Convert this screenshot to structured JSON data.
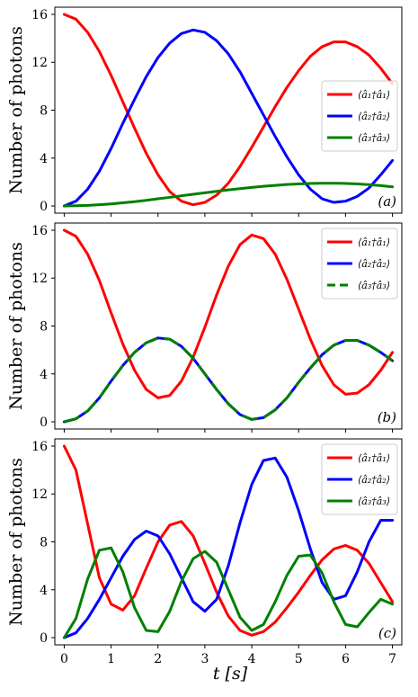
{
  "figure": {
    "xlabel": "t [s]",
    "x_ticks": [
      "0",
      "1",
      "2",
      "3",
      "4",
      "5",
      "6",
      "7"
    ]
  },
  "chart_data": [
    {
      "type": "line",
      "panel_label": "(a)",
      "ylabel": "Number of photons",
      "xlim": [
        -0.2,
        7.2
      ],
      "ylim": [
        -0.6,
        16.6
      ],
      "y_ticks": [
        "0",
        "4",
        "8",
        "12",
        "16"
      ],
      "legend_position": "center-right",
      "grid": false,
      "x": [
        0,
        0.25,
        0.5,
        0.75,
        1,
        1.25,
        1.5,
        1.75,
        2,
        2.25,
        2.5,
        2.75,
        3,
        3.25,
        3.5,
        3.75,
        4,
        4.25,
        4.5,
        4.75,
        5,
        5.25,
        5.5,
        5.75,
        6,
        6.25,
        6.5,
        6.75,
        7
      ],
      "series": [
        {
          "name": "⟨â₁†â₁⟩",
          "color": "#ff0000",
          "dashed": false,
          "values": [
            16.0,
            15.6,
            14.5,
            12.9,
            10.9,
            8.7,
            6.5,
            4.4,
            2.6,
            1.2,
            0.4,
            0.1,
            0.3,
            0.9,
            1.9,
            3.3,
            4.9,
            6.6,
            8.3,
            9.9,
            11.3,
            12.5,
            13.3,
            13.7,
            13.7,
            13.3,
            12.6,
            11.5,
            10.2
          ]
        },
        {
          "name": "⟨â₂†â₂⟩",
          "color": "#0000ff",
          "dashed": false,
          "values": [
            0.0,
            0.4,
            1.4,
            2.9,
            4.8,
            6.9,
            8.9,
            10.8,
            12.4,
            13.6,
            14.4,
            14.7,
            14.5,
            13.8,
            12.7,
            11.2,
            9.4,
            7.6,
            5.8,
            4.1,
            2.6,
            1.4,
            0.6,
            0.3,
            0.4,
            0.8,
            1.5,
            2.6,
            3.8
          ]
        },
        {
          "name": "⟨â₃†â₃⟩",
          "color": "#008000",
          "dashed": false,
          "values": [
            0.0,
            0.02,
            0.05,
            0.1,
            0.17,
            0.26,
            0.36,
            0.47,
            0.6,
            0.72,
            0.85,
            0.98,
            1.1,
            1.22,
            1.34,
            1.45,
            1.55,
            1.64,
            1.72,
            1.79,
            1.84,
            1.88,
            1.9,
            1.9,
            1.88,
            1.84,
            1.78,
            1.7,
            1.6
          ]
        }
      ]
    },
    {
      "type": "line",
      "panel_label": "(b)",
      "ylabel": "Number of photons",
      "xlim": [
        -0.2,
        7.2
      ],
      "ylim": [
        -0.6,
        16.6
      ],
      "y_ticks": [
        "0",
        "4",
        "8",
        "12",
        "16"
      ],
      "legend_position": "top-right",
      "grid": false,
      "x": [
        0,
        0.25,
        0.5,
        0.75,
        1,
        1.25,
        1.5,
        1.75,
        2,
        2.25,
        2.5,
        2.75,
        3,
        3.25,
        3.5,
        3.75,
        4,
        4.25,
        4.5,
        4.75,
        5,
        5.25,
        5.5,
        5.75,
        6,
        6.25,
        6.5,
        6.75,
        7
      ],
      "series": [
        {
          "name": "⟨â₁†â₁⟩",
          "color": "#ff0000",
          "dashed": false,
          "values": [
            16.0,
            15.5,
            14.0,
            11.8,
            9.1,
            6.5,
            4.3,
            2.7,
            2.0,
            2.2,
            3.4,
            5.4,
            7.9,
            10.6,
            13.0,
            14.8,
            15.6,
            15.3,
            14.0,
            11.9,
            9.4,
            6.9,
            4.7,
            3.1,
            2.3,
            2.4,
            3.1,
            4.3,
            5.8
          ]
        },
        {
          "name": "⟨â₂†â₂⟩",
          "color": "#0000ff",
          "dashed": false,
          "values": [
            0.0,
            0.25,
            0.9,
            2.0,
            3.4,
            4.7,
            5.8,
            6.6,
            7.0,
            6.9,
            6.3,
            5.3,
            4.0,
            2.7,
            1.5,
            0.6,
            0.2,
            0.35,
            1.0,
            2.0,
            3.3,
            4.5,
            5.6,
            6.4,
            6.8,
            6.8,
            6.4,
            5.8,
            5.1
          ]
        },
        {
          "name": "⟨â₃†â₃⟩",
          "color": "#008000",
          "dashed": true,
          "values": [
            0.0,
            0.25,
            0.9,
            2.0,
            3.4,
            4.7,
            5.8,
            6.6,
            7.0,
            6.9,
            6.3,
            5.3,
            4.0,
            2.7,
            1.5,
            0.6,
            0.2,
            0.35,
            1.0,
            2.0,
            3.3,
            4.5,
            5.6,
            6.4,
            6.8,
            6.8,
            6.4,
            5.8,
            5.1
          ]
        }
      ]
    },
    {
      "type": "line",
      "panel_label": "(c)",
      "ylabel": "Number of photons",
      "xlim": [
        -0.2,
        7.2
      ],
      "ylim": [
        -0.6,
        16.6
      ],
      "y_ticks": [
        "0",
        "4",
        "8",
        "12",
        "16"
      ],
      "legend_position": "top-right",
      "grid": false,
      "x": [
        0,
        0.25,
        0.5,
        0.75,
        1,
        1.25,
        1.5,
        1.75,
        2,
        2.25,
        2.5,
        2.75,
        3,
        3.25,
        3.5,
        3.75,
        4,
        4.25,
        4.5,
        4.75,
        5,
        5.25,
        5.5,
        5.75,
        6,
        6.25,
        6.5,
        6.75,
        7
      ],
      "series": [
        {
          "name": "⟨â₁†â₁⟩",
          "color": "#ff0000",
          "dashed": false,
          "values": [
            16.0,
            14.0,
            9.5,
            5.0,
            2.8,
            2.3,
            3.5,
            5.8,
            8.0,
            9.4,
            9.7,
            8.5,
            6.2,
            3.8,
            1.8,
            0.6,
            0.2,
            0.5,
            1.3,
            2.5,
            3.8,
            5.2,
            6.5,
            7.4,
            7.7,
            7.3,
            6.2,
            4.6,
            3.0
          ]
        },
        {
          "name": "⟨â₂†â₂⟩",
          "color": "#0000ff",
          "dashed": false,
          "values": [
            0.0,
            0.4,
            1.6,
            3.2,
            5.0,
            6.8,
            8.2,
            8.9,
            8.5,
            7.0,
            5.0,
            3.0,
            2.2,
            3.2,
            6.0,
            9.6,
            12.8,
            14.8,
            15.0,
            13.4,
            10.6,
            7.4,
            4.6,
            3.2,
            3.5,
            5.5,
            8.0,
            9.8,
            9.8
          ]
        },
        {
          "name": "⟨â₃†â₃⟩",
          "color": "#008000",
          "dashed": false,
          "values": [
            0.0,
            1.6,
            4.9,
            7.3,
            7.5,
            5.5,
            2.5,
            0.6,
            0.5,
            2.2,
            4.7,
            6.6,
            7.2,
            6.3,
            4.0,
            1.7,
            0.6,
            1.1,
            3.0,
            5.2,
            6.8,
            6.9,
            5.4,
            3.0,
            1.1,
            0.9,
            2.1,
            3.2,
            2.8
          ]
        }
      ]
    }
  ]
}
